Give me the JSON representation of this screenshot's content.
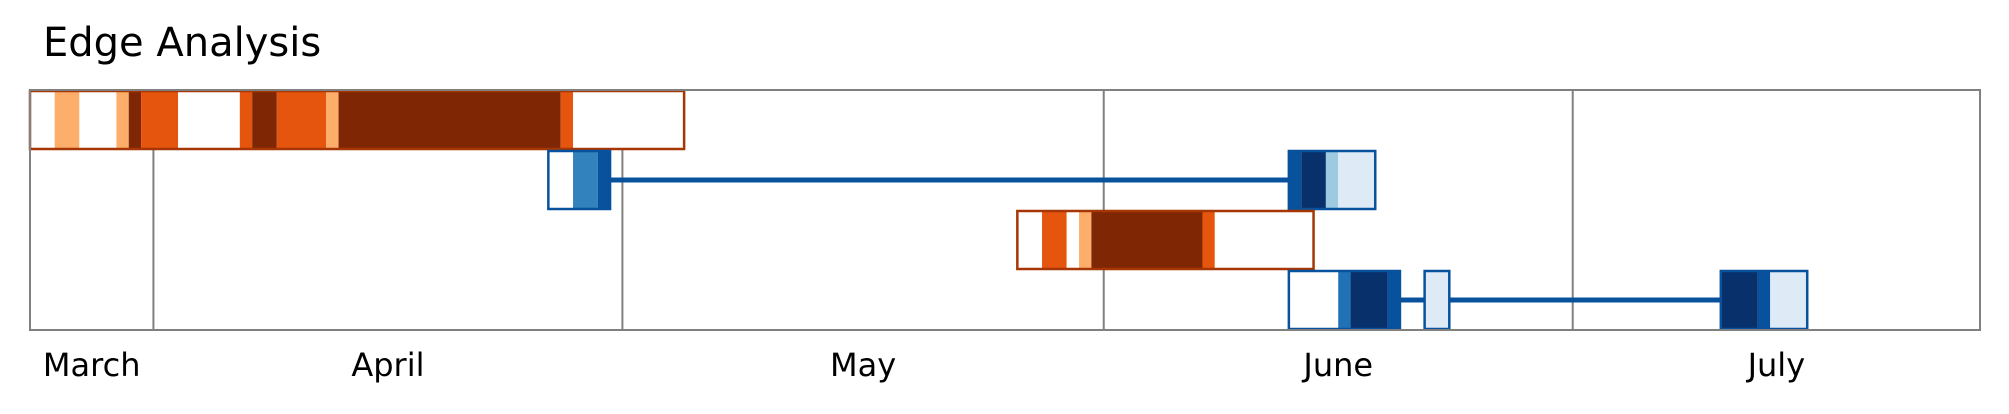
{
  "chart_data": {
    "type": "timeline",
    "title": "Edge Analysis",
    "x_axis": {
      "type": "date",
      "range": [
        "2024-02-23",
        "2024-07-30"
      ],
      "month_labels": [
        "March",
        "April",
        "May",
        "June",
        "July"
      ],
      "gridlines": [
        "2024-03-04",
        "2024-04-11",
        "2024-05-20",
        "2024-06-27"
      ]
    },
    "grid": true,
    "colors": {
      "frame": "#808080",
      "orange_outline": "#a63603",
      "blue_outline": "#08519c",
      "connector": "#08519c"
    },
    "rows": [
      {
        "row": 0,
        "palette": "orange",
        "boxes": [
          {
            "start": "2024-02-23",
            "end": "2024-04-16",
            "segments": [
              {
                "start": "2024-02-23",
                "end": "2024-02-25",
                "color": "#ffffff"
              },
              {
                "start": "2024-02-25",
                "end": "2024-02-27",
                "color": "#fdae6b"
              },
              {
                "start": "2024-02-27",
                "end": "2024-03-01",
                "color": "#ffffff"
              },
              {
                "start": "2024-03-01",
                "end": "2024-03-02",
                "color": "#fdae6b"
              },
              {
                "start": "2024-03-02",
                "end": "2024-03-03",
                "color": "#7f2704"
              },
              {
                "start": "2024-03-03",
                "end": "2024-03-06",
                "color": "#e6550d"
              },
              {
                "start": "2024-03-06",
                "end": "2024-03-11",
                "color": "#ffffff"
              },
              {
                "start": "2024-03-11",
                "end": "2024-03-12",
                "color": "#e6550d"
              },
              {
                "start": "2024-03-12",
                "end": "2024-03-14",
                "color": "#7f2704"
              },
              {
                "start": "2024-03-14",
                "end": "2024-03-18",
                "color": "#e6550d"
              },
              {
                "start": "2024-03-18",
                "end": "2024-03-19",
                "color": "#fdae6b"
              },
              {
                "start": "2024-03-19",
                "end": "2024-04-06",
                "color": "#7f2704"
              },
              {
                "start": "2024-04-06",
                "end": "2024-04-07",
                "color": "#e6550d"
              },
              {
                "start": "2024-04-07",
                "end": "2024-04-16",
                "color": "#ffffff"
              }
            ]
          }
        ]
      },
      {
        "row": 1,
        "palette": "blue",
        "boxes": [
          {
            "start": "2024-04-05",
            "end": "2024-04-10",
            "segments": [
              {
                "start": "2024-04-05",
                "end": "2024-04-07",
                "color": "#ffffff"
              },
              {
                "start": "2024-04-07",
                "end": "2024-04-09",
                "color": "#3182bd"
              },
              {
                "start": "2024-04-09",
                "end": "2024-04-10",
                "color": "#08519c"
              }
            ]
          },
          {
            "start": "2024-06-04",
            "end": "2024-06-11",
            "segments": [
              {
                "start": "2024-06-04",
                "end": "2024-06-05",
                "color": "#08519c"
              },
              {
                "start": "2024-06-05",
                "end": "2024-06-07",
                "color": "#08306b"
              },
              {
                "start": "2024-06-07",
                "end": "2024-06-08",
                "color": "#9ecae1"
              },
              {
                "start": "2024-06-08",
                "end": "2024-06-11",
                "color": "#deebf7"
              }
            ]
          }
        ],
        "connectors": [
          {
            "start": "2024-04-10",
            "end": "2024-06-04"
          }
        ]
      },
      {
        "row": 2,
        "palette": "orange",
        "boxes": [
          {
            "start": "2024-05-13",
            "end": "2024-06-06",
            "segments": [
              {
                "start": "2024-05-13",
                "end": "2024-05-15",
                "color": "#ffffff"
              },
              {
                "start": "2024-05-15",
                "end": "2024-05-17",
                "color": "#e6550d"
              },
              {
                "start": "2024-05-17",
                "end": "2024-05-18",
                "color": "#ffffff"
              },
              {
                "start": "2024-05-18",
                "end": "2024-05-19",
                "color": "#fdae6b"
              },
              {
                "start": "2024-05-19",
                "end": "2024-05-28",
                "color": "#7f2704"
              },
              {
                "start": "2024-05-28",
                "end": "2024-05-29",
                "color": "#e6550d"
              },
              {
                "start": "2024-05-29",
                "end": "2024-06-06",
                "color": "#ffffff"
              }
            ]
          }
        ]
      },
      {
        "row": 3,
        "palette": "blue",
        "boxes": [
          {
            "start": "2024-06-04",
            "end": "2024-06-13",
            "segments": [
              {
                "start": "2024-06-04",
                "end": "2024-06-08",
                "color": "#ffffff"
              },
              {
                "start": "2024-06-08",
                "end": "2024-06-09",
                "color": "#2171b5"
              },
              {
                "start": "2024-06-09",
                "end": "2024-06-12",
                "color": "#08306b"
              },
              {
                "start": "2024-06-12",
                "end": "2024-06-13",
                "color": "#08519c"
              }
            ]
          },
          {
            "start": "2024-06-15",
            "end": "2024-06-17",
            "segments": [
              {
                "start": "2024-06-15",
                "end": "2024-06-17",
                "color": "#deebf7"
              }
            ]
          },
          {
            "start": "2024-07-09",
            "end": "2024-07-16",
            "segments": [
              {
                "start": "2024-07-09",
                "end": "2024-07-12",
                "color": "#08306b"
              },
              {
                "start": "2024-07-12",
                "end": "2024-07-13",
                "color": "#08519c"
              },
              {
                "start": "2024-07-13",
                "end": "2024-07-16",
                "color": "#deebf7"
              }
            ]
          }
        ],
        "connectors": [
          {
            "start": "2024-06-13",
            "end": "2024-06-15"
          },
          {
            "start": "2024-06-17",
            "end": "2024-07-09"
          }
        ]
      }
    ]
  }
}
